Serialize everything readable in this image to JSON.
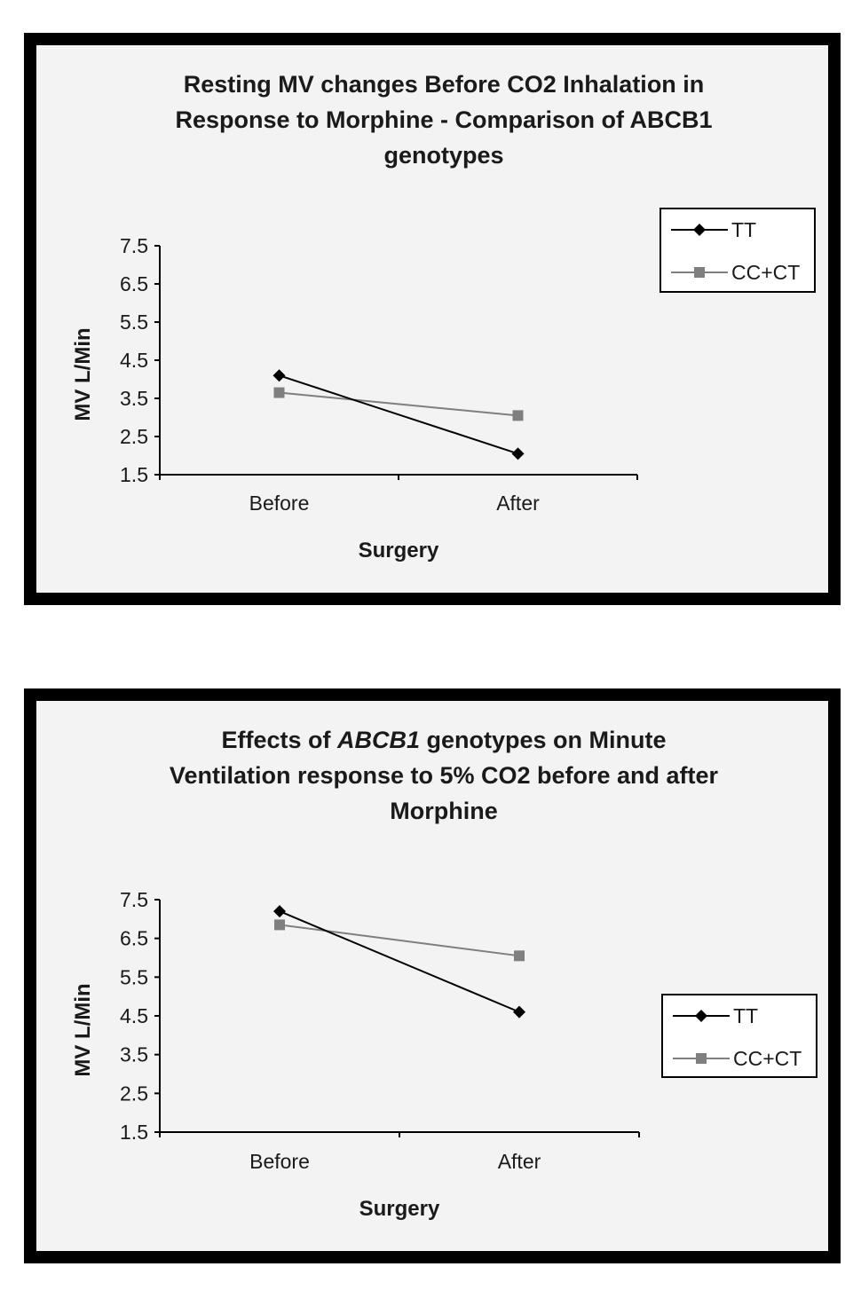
{
  "chart_data": [
    {
      "type": "line",
      "title_lines": [
        [
          {
            "text": "Resting MV changes Before CO2 Inhalation in",
            "italic": false
          }
        ],
        [
          {
            "text": "Response to Morphine - Comparison of ABCB1",
            "italic": false
          }
        ],
        [
          {
            "text": "genotypes",
            "italic": false
          }
        ]
      ],
      "xlabel": "Surgery",
      "ylabel": "MV L/Min",
      "categories": [
        "Before",
        "After"
      ],
      "y_ticks": [
        "7.5",
        "6.5",
        "5.5",
        "4.5",
        "3.5",
        "2.5",
        "1.5"
      ],
      "ylim": [
        1.5,
        7.5
      ],
      "legend_position": "right-top",
      "series": [
        {
          "name": "TT",
          "values": [
            4.1,
            2.05
          ],
          "color": "#000000",
          "marker": "diamond"
        },
        {
          "name": "CC+CT",
          "values": [
            3.65,
            3.05
          ],
          "color": "#7f7f7f",
          "marker": "square"
        }
      ]
    },
    {
      "type": "line",
      "title_lines": [
        [
          {
            "text": "Effects of ",
            "italic": false
          },
          {
            "text": "ABCB1",
            "italic": true
          },
          {
            "text": " genotypes on Minute",
            "italic": false
          }
        ],
        [
          {
            "text": "Ventilation response to 5% CO2 before and after",
            "italic": false
          }
        ],
        [
          {
            "text": "Morphine",
            "italic": false
          }
        ]
      ],
      "xlabel": "Surgery",
      "ylabel": "MV L/Min",
      "categories": [
        "Before",
        "After"
      ],
      "y_ticks": [
        "7.5",
        "6.5",
        "5.5",
        "4.5",
        "3.5",
        "2.5",
        "1.5"
      ],
      "ylim": [
        1.5,
        7.5
      ],
      "legend_position": "right-middle",
      "series": [
        {
          "name": "TT",
          "values": [
            7.2,
            4.6
          ],
          "color": "#000000",
          "marker": "diamond"
        },
        {
          "name": "CC+CT",
          "values": [
            6.85,
            6.05
          ],
          "color": "#7f7f7f",
          "marker": "square"
        }
      ]
    }
  ]
}
